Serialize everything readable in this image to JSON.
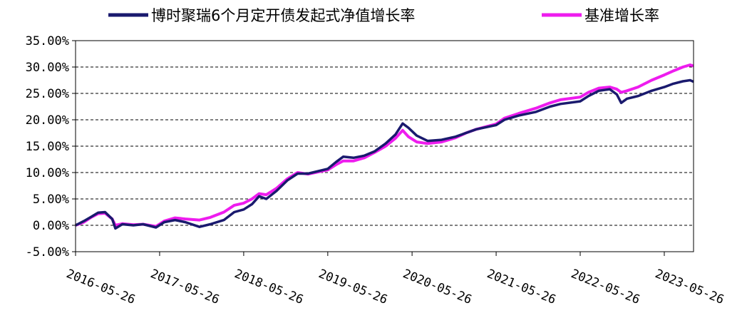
{
  "chart_data": {
    "type": "line",
    "title": "",
    "xlabel": "",
    "ylabel": "",
    "ylim": [
      -0.05,
      0.35
    ],
    "y_ticks": [
      "35.00%",
      "30.00%",
      "25.00%",
      "20.00%",
      "15.00%",
      "10.00%",
      "5.00%",
      "0.00%",
      "-5.00%"
    ],
    "x_ticks": [
      "2016-05-26",
      "2017-05-26",
      "2018-05-26",
      "2019-05-26",
      "2020-05-26",
      "2021-05-26",
      "2022-05-26",
      "2023-05-26"
    ],
    "x_range": [
      "2016-05-26",
      "2023-09-30"
    ],
    "grid": "horizontal dashed",
    "legend_position": "top",
    "series": [
      {
        "name": "博时聚瑞6个月定开债发起式净值增长率",
        "color": "#1a1a6e",
        "points": [
          [
            "2016-05-26",
            0.0
          ],
          [
            "2016-07-01",
            0.008
          ],
          [
            "2016-08-01",
            0.016
          ],
          [
            "2016-09-01",
            0.024
          ],
          [
            "2016-10-01",
            0.025
          ],
          [
            "2016-11-01",
            0.012
          ],
          [
            "2016-11-15",
            -0.006
          ],
          [
            "2016-12-15",
            0.002
          ],
          [
            "2017-02-01",
            0.0
          ],
          [
            "2017-03-15",
            0.002
          ],
          [
            "2017-05-10",
            -0.004
          ],
          [
            "2017-06-15",
            0.006
          ],
          [
            "2017-08-01",
            0.01
          ],
          [
            "2017-09-15",
            0.006
          ],
          [
            "2017-11-15",
            -0.003
          ],
          [
            "2018-01-01",
            0.002
          ],
          [
            "2018-03-01",
            0.01
          ],
          [
            "2018-04-15",
            0.025
          ],
          [
            "2018-05-26",
            0.03
          ],
          [
            "2018-07-01",
            0.04
          ],
          [
            "2018-08-01",
            0.055
          ],
          [
            "2018-09-01",
            0.05
          ],
          [
            "2018-10-15",
            0.065
          ],
          [
            "2018-12-01",
            0.085
          ],
          [
            "2019-01-15",
            0.098
          ],
          [
            "2019-03-01",
            0.098
          ],
          [
            "2019-05-26",
            0.107
          ],
          [
            "2019-07-01",
            0.12
          ],
          [
            "2019-08-01",
            0.13
          ],
          [
            "2019-09-15",
            0.128
          ],
          [
            "2019-11-01",
            0.132
          ],
          [
            "2019-12-15",
            0.14
          ],
          [
            "2020-02-01",
            0.155
          ],
          [
            "2020-03-15",
            0.172
          ],
          [
            "2020-04-15",
            0.193
          ],
          [
            "2020-05-10",
            0.185
          ],
          [
            "2020-06-15",
            0.17
          ],
          [
            "2020-08-01",
            0.16
          ],
          [
            "2020-10-01",
            0.162
          ],
          [
            "2020-12-01",
            0.168
          ],
          [
            "2021-01-15",
            0.175
          ],
          [
            "2021-03-01",
            0.182
          ],
          [
            "2021-05-26",
            0.19
          ],
          [
            "2021-07-01",
            0.2
          ],
          [
            "2021-09-01",
            0.208
          ],
          [
            "2021-11-15",
            0.215
          ],
          [
            "2022-01-15",
            0.225
          ],
          [
            "2022-03-01",
            0.23
          ],
          [
            "2022-05-26",
            0.235
          ],
          [
            "2022-07-01",
            0.245
          ],
          [
            "2022-08-15",
            0.255
          ],
          [
            "2022-10-01",
            0.258
          ],
          [
            "2022-11-01",
            0.248
          ],
          [
            "2022-11-20",
            0.232
          ],
          [
            "2022-12-15",
            0.24
          ],
          [
            "2023-02-01",
            0.245
          ],
          [
            "2023-04-01",
            0.255
          ],
          [
            "2023-05-26",
            0.262
          ],
          [
            "2023-07-01",
            0.268
          ],
          [
            "2023-08-15",
            0.273
          ],
          [
            "2023-09-15",
            0.275
          ],
          [
            "2023-09-30",
            0.272
          ]
        ]
      },
      {
        "name": "基准增长率",
        "color": "#ee1cee",
        "points": [
          [
            "2016-05-26",
            0.0
          ],
          [
            "2016-07-01",
            0.006
          ],
          [
            "2016-08-01",
            0.015
          ],
          [
            "2016-09-01",
            0.022
          ],
          [
            "2016-10-01",
            0.023
          ],
          [
            "2016-11-01",
            0.012
          ],
          [
            "2016-11-15",
            0.0
          ],
          [
            "2016-12-15",
            0.003
          ],
          [
            "2017-02-01",
            0.001
          ],
          [
            "2017-03-15",
            0.002
          ],
          [
            "2017-05-10",
            -0.002
          ],
          [
            "2017-06-15",
            0.008
          ],
          [
            "2017-08-01",
            0.014
          ],
          [
            "2017-09-15",
            0.012
          ],
          [
            "2017-11-15",
            0.01
          ],
          [
            "2018-01-01",
            0.015
          ],
          [
            "2018-03-01",
            0.025
          ],
          [
            "2018-04-15",
            0.038
          ],
          [
            "2018-05-26",
            0.042
          ],
          [
            "2018-07-01",
            0.05
          ],
          [
            "2018-08-01",
            0.06
          ],
          [
            "2018-09-01",
            0.058
          ],
          [
            "2018-10-15",
            0.07
          ],
          [
            "2018-12-01",
            0.088
          ],
          [
            "2019-01-15",
            0.1
          ],
          [
            "2019-03-01",
            0.097
          ],
          [
            "2019-05-26",
            0.105
          ],
          [
            "2019-07-01",
            0.115
          ],
          [
            "2019-08-01",
            0.122
          ],
          [
            "2019-09-15",
            0.122
          ],
          [
            "2019-11-01",
            0.128
          ],
          [
            "2019-12-15",
            0.138
          ],
          [
            "2020-02-01",
            0.15
          ],
          [
            "2020-03-15",
            0.165
          ],
          [
            "2020-04-15",
            0.18
          ],
          [
            "2020-05-10",
            0.168
          ],
          [
            "2020-06-15",
            0.158
          ],
          [
            "2020-08-01",
            0.155
          ],
          [
            "2020-10-01",
            0.158
          ],
          [
            "2020-12-01",
            0.166
          ],
          [
            "2021-01-15",
            0.175
          ],
          [
            "2021-03-01",
            0.182
          ],
          [
            "2021-05-26",
            0.192
          ],
          [
            "2021-07-01",
            0.203
          ],
          [
            "2021-09-01",
            0.212
          ],
          [
            "2021-11-15",
            0.222
          ],
          [
            "2022-01-15",
            0.232
          ],
          [
            "2022-03-01",
            0.238
          ],
          [
            "2022-05-26",
            0.243
          ],
          [
            "2022-07-01",
            0.252
          ],
          [
            "2022-08-15",
            0.26
          ],
          [
            "2022-10-01",
            0.262
          ],
          [
            "2022-11-01",
            0.258
          ],
          [
            "2022-11-20",
            0.252
          ],
          [
            "2022-12-15",
            0.255
          ],
          [
            "2023-02-01",
            0.262
          ],
          [
            "2023-04-01",
            0.275
          ],
          [
            "2023-05-26",
            0.285
          ],
          [
            "2023-07-01",
            0.292
          ],
          [
            "2023-08-15",
            0.3
          ],
          [
            "2023-09-15",
            0.304
          ],
          [
            "2023-09-30",
            0.302
          ]
        ]
      }
    ]
  }
}
